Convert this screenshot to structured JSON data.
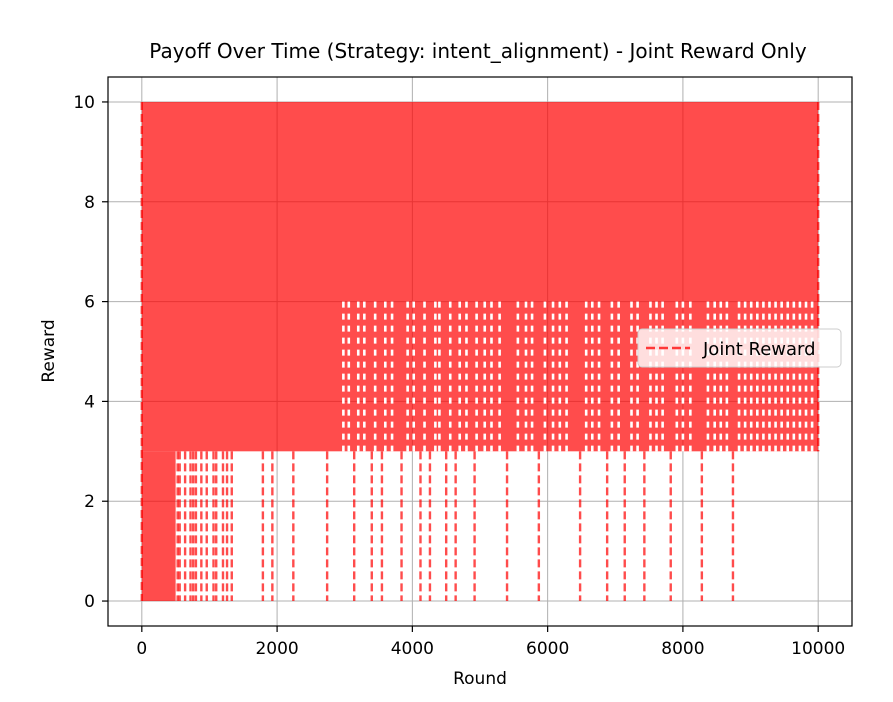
{
  "chart_data": {
    "type": "line",
    "title": "Payoff Over Time (Strategy: intent_alignment) - Joint Reward Only",
    "xlabel": "Round",
    "ylabel": "Reward",
    "xlim": [
      -500,
      10500
    ],
    "ylim": [
      -0.5,
      10.5
    ],
    "xticks": [
      0,
      2000,
      4000,
      6000,
      8000,
      10000
    ],
    "yticks": [
      0,
      2,
      4,
      6,
      8,
      10
    ],
    "grid": true,
    "legend": {
      "position": "right",
      "entries": [
        "Joint Reward"
      ]
    },
    "series": [
      {
        "name": "Joint Reward",
        "color": "#ff0000",
        "alpha": 0.7,
        "linestyle": "dashed",
        "x_range": [
          0,
          10000
        ],
        "value_levels": [
          0,
          3,
          6,
          10
        ],
        "dominant_band": [
          3,
          10
        ],
        "drop_to_0_rounds": [
          530,
          760,
          1060,
          1330,
          1790,
          1930,
          2240,
          2740,
          3140,
          3400,
          3550,
          3840,
          4120,
          4260,
          4500,
          4640,
          4920,
          5400,
          5870,
          6480,
          6880,
          7140,
          7430,
          7820,
          8280,
          8740
        ],
        "band_0_3_until": 500,
        "dense_0_3_rounds": [
          560,
          640,
          720,
          800,
          880,
          960,
          1100,
          1200,
          1260
        ],
        "drop_to_3_rounds": [
          2980,
          3060,
          3200,
          3290,
          3450,
          3600,
          3700,
          3930,
          4020,
          4180,
          4340,
          4400,
          4560,
          4700,
          4800,
          4950,
          5070,
          5170,
          5290,
          5560,
          5680,
          5770,
          5960,
          6080,
          6180,
          6280,
          6570,
          6660,
          6760,
          6950,
          7050,
          7240,
          7330,
          7520,
          7610,
          7700,
          7910,
          8000,
          8110,
          8370,
          8470,
          8560,
          8650,
          8830,
          8920,
          9010,
          9100,
          9190,
          9280,
          9370,
          9460,
          9550,
          9640,
          9730,
          9820,
          9910
        ]
      }
    ]
  }
}
